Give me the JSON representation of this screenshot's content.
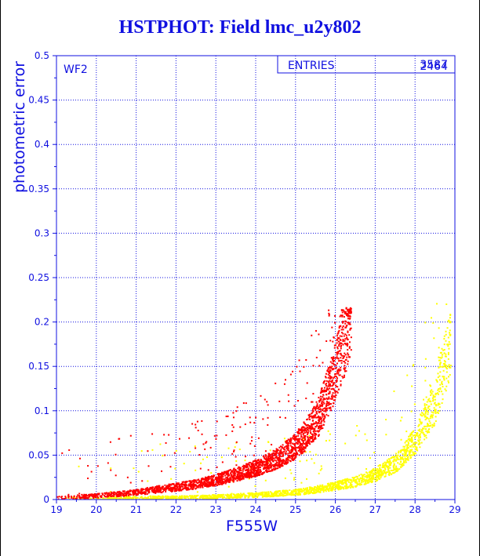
{
  "chart_data": {
    "type": "scatter",
    "title": "HSTPHOT: Field lmc_u2y802",
    "xlabel": "F555W",
    "ylabel": "photometric error",
    "xlim": [
      19,
      29
    ],
    "ylim": [
      0,
      0.5
    ],
    "x_ticks": [
      "19",
      "20",
      "21",
      "22",
      "23",
      "24",
      "25",
      "26",
      "27",
      "28",
      "29"
    ],
    "y_ticks": [
      "0",
      "0.05",
      "0.1",
      "0.15",
      "0.2",
      "0.25",
      "0.3",
      "0.35",
      "0.4",
      "0.45",
      "0.5"
    ],
    "grid": true,
    "annotation": "WF2",
    "stats_box": {
      "label": "ENTRIES",
      "values": [
        "3587",
        "2464"
      ]
    },
    "series": [
      {
        "color": "#ff0000",
        "entries": 3587,
        "x": [
          19.0,
          19.5,
          20.0,
          20.5,
          21.0,
          21.5,
          22.0,
          22.5,
          23.0,
          23.5,
          24.0,
          24.5,
          25.0,
          25.3,
          25.6,
          25.9,
          26.1,
          26.3,
          26.4
        ],
        "y": [
          0.002,
          0.003,
          0.004,
          0.006,
          0.008,
          0.011,
          0.014,
          0.017,
          0.022,
          0.028,
          0.035,
          0.045,
          0.06,
          0.075,
          0.095,
          0.13,
          0.16,
          0.19,
          0.215
        ]
      },
      {
        "color": "#ffff00",
        "entries": 2464,
        "x": [
          19.0,
          20.0,
          21.0,
          22.0,
          23.0,
          24.0,
          25.0,
          25.5,
          26.0,
          26.5,
          27.0,
          27.5,
          28.0,
          28.5,
          28.9
        ],
        "y": [
          0.001,
          0.001,
          0.002,
          0.002,
          0.003,
          0.005,
          0.008,
          0.011,
          0.015,
          0.02,
          0.028,
          0.04,
          0.065,
          0.11,
          0.18
        ]
      }
    ]
  }
}
